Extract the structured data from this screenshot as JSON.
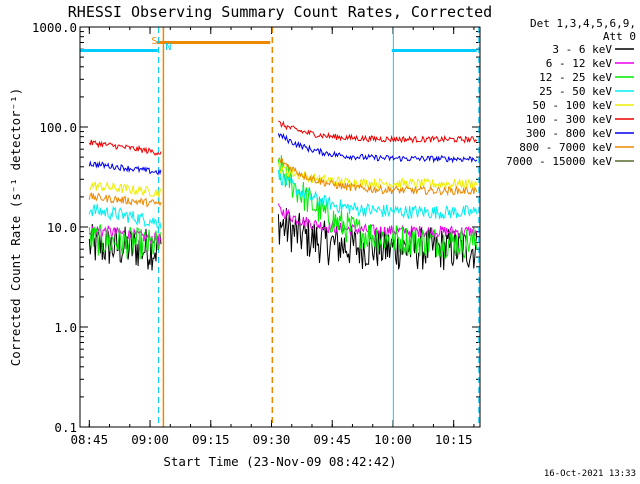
{
  "chart_data": {
    "type": "line",
    "title": "RHESSI Observing Summary Count Rates, Corrected",
    "xlabel": "Start Time (23-Nov-09 08:42:42)",
    "ylabel": "Corrected Count Rate (s⁻¹ detector⁻¹)",
    "y_scale": "log",
    "ylim": [
      0.1,
      1000
    ],
    "xlim": [
      "08:42:42",
      "10:21:30"
    ],
    "x_ticks": [
      "08:45",
      "09:00",
      "09:15",
      "09:30",
      "09:45",
      "10:00",
      "10:15"
    ],
    "x_tick_values_min": [
      2.3,
      17.3,
      32.3,
      47.3,
      62.3,
      77.3,
      92.3
    ],
    "y_ticks": [
      "0.1",
      "1.0",
      "10.0",
      "100.0",
      "1000.0"
    ],
    "y_tick_values": [
      0.1,
      1,
      10,
      100,
      1000
    ],
    "legend_header": [
      "Det 1,3,4,5,6,9,",
      "Att 0"
    ],
    "legend_position": "right",
    "series": [
      {
        "name": "3 - 6 keV",
        "color": "#000000",
        "before_start": 6.5,
        "before_end": 6.0,
        "after_start": 11,
        "after_end": 6.0,
        "noise": 0.22
      },
      {
        "name": "6 - 12 keV",
        "color": "#ee00ee",
        "before_start": 9.5,
        "before_end": 7.5,
        "after_start": 15,
        "after_end": 9.0,
        "noise": 0.06
      },
      {
        "name": "12 - 25 keV",
        "color": "#00ee00",
        "before_start": 7.5,
        "before_end": 6.5,
        "after_start": 40,
        "after_end": 7.0,
        "noise": 0.16
      },
      {
        "name": "25 - 50 keV",
        "color": "#00eeee",
        "before_start": 15,
        "before_end": 11,
        "after_start": 33,
        "after_end": 14,
        "noise": 0.07
      },
      {
        "name": "50 - 100 keV",
        "color": "#eeee00",
        "before_start": 26,
        "before_end": 22,
        "after_start": 40,
        "after_end": 27,
        "noise": 0.05
      },
      {
        "name": "100 - 300 keV",
        "color": "#ee0000",
        "before_start": 70,
        "before_end": 55,
        "after_start": 110,
        "after_end": 75,
        "noise": 0.03
      },
      {
        "name": "300 - 800 keV",
        "color": "#0000ee",
        "before_start": 43,
        "before_end": 35,
        "after_start": 85,
        "after_end": 48,
        "noise": 0.03
      },
      {
        "name": "800 - 7000 keV",
        "color": "#ee8800",
        "before_start": 20,
        "before_end": 17,
        "after_start": 48,
        "after_end": 23,
        "noise": 0.04
      },
      {
        "name": "7000 - 15000 keV",
        "color": "#556b2f",
        "before_start": null,
        "before_end": null,
        "after_start": null,
        "after_end": null,
        "noise": 0
      }
    ],
    "data_windows_min": {
      "before": [
        2.3,
        20.0
      ],
      "after": [
        49.0,
        98.0
      ]
    },
    "flags": {
      "saa_label": "S",
      "night_label": "N",
      "saa_color": "#ee8800",
      "night_color": "#00ccff",
      "saa_bar_min": [
        19.0,
        47.0
      ],
      "night_bars_min": [
        [
          0.0,
          19.2
        ],
        [
          77.0,
          98.0
        ]
      ],
      "saa_solid_line_min": 20.6,
      "saa_dashed_line_min": 47.5,
      "night_solid_lines_min": [
        0.0,
        77.4
      ],
      "night_dashed_lines_min": [
        19.4,
        98.5
      ],
      "bar_level": 700
    },
    "grid": false
  },
  "footer_stamp": "16-Oct-2021 13:33"
}
